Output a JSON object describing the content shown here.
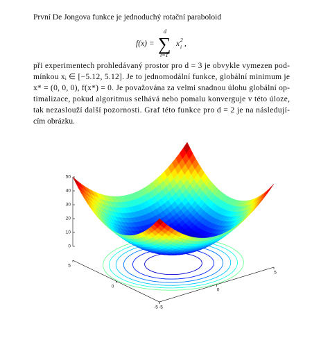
{
  "paragraph1": "První De Jongova funkce je jednoduchý rotační paraboloid",
  "formula": {
    "lhs": "f(x) =",
    "sum": "∑",
    "upper": "d",
    "lower": "i=1",
    "term": "x",
    "sub": "i",
    "sup": "2",
    "end": ","
  },
  "paragraph2": [
    "při experimentech prohledávaný prostor pro d = 3 je obvykle vymezen pod-",
    "mínkou xᵢ ∈ [−5.12, 5.12]. Je to jednomodální funkce, globální minimum je",
    "x* = (0, 0, 0), f(x*) = 0. Je považována za velmi snadnou úlohu globální op-",
    "timalizace, pokud algoritmus selhává nebo pomalu konverguje v této úloze,",
    "tak nezaslouží další pozornosti. Graf této funkce pro d = 2 je na následují-",
    "cím obrázku."
  ],
  "figure": {
    "xlim": [
      -5,
      5
    ],
    "ylim": [
      -5,
      5
    ],
    "zlim": [
      0,
      50
    ],
    "xticks": [
      -5,
      0,
      5
    ],
    "yticks": [
      -5,
      0,
      5
    ],
    "zticks": [
      0,
      10,
      20,
      30,
      40,
      50
    ]
  }
}
